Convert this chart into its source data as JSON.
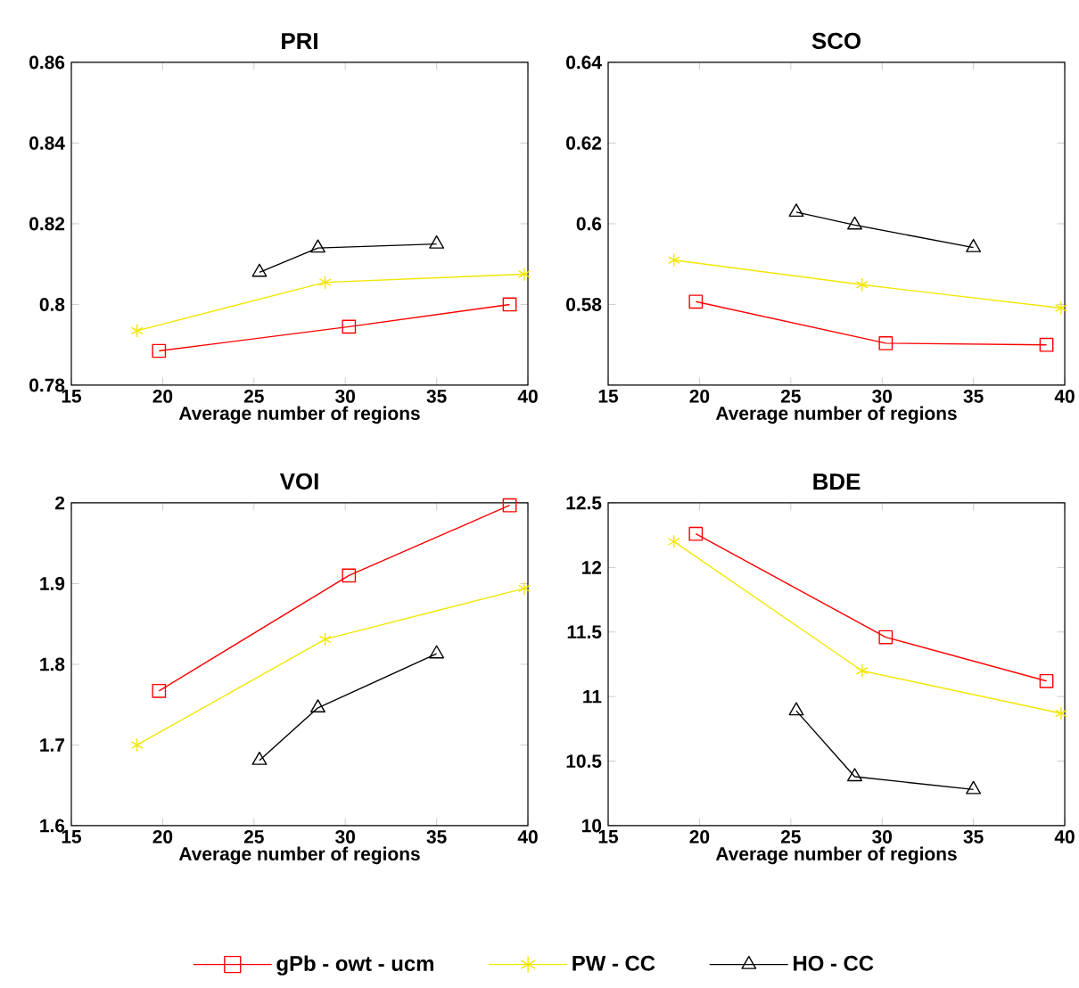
{
  "chart_data": [
    {
      "type": "line",
      "title": "PRI",
      "xlabel": "Average number of regions",
      "xlim": [
        15,
        40
      ],
      "xticks": [
        15,
        20,
        25,
        30,
        35,
        40
      ],
      "ylim": [
        0.78,
        0.86
      ],
      "yticks": [
        0.78,
        0.8,
        0.82,
        0.84,
        0.86
      ],
      "series": [
        {
          "color": "#ff0000",
          "marker": "square",
          "x": [
            19.8,
            30.2,
            39.0
          ],
          "values": [
            0.7885,
            0.7945,
            0.8
          ]
        },
        {
          "color": "#f2e600",
          "marker": "cross",
          "x": [
            18.6,
            28.9,
            39.8
          ],
          "values": [
            0.7935,
            0.8055,
            0.8075
          ]
        },
        {
          "color": "#000000",
          "marker": "triangle",
          "x": [
            25.3,
            28.5,
            35.0
          ],
          "values": [
            0.808,
            0.814,
            0.815
          ]
        }
      ]
    },
    {
      "type": "line",
      "title": "SCO",
      "xlabel": "Average number of regions",
      "xlim": [
        15,
        40
      ],
      "xticks": [
        15,
        20,
        25,
        30,
        35,
        40
      ],
      "ylim": [
        0.56,
        0.64
      ],
      "yticks": [
        {
          "value": 0.56,
          "label": null
        },
        0.58,
        0.6,
        0.62,
        0.64
      ],
      "series": [
        {
          "color": "#ff0000",
          "marker": "square",
          "x": [
            19.8,
            30.2,
            39.0
          ],
          "values": [
            0.5807,
            0.5704,
            0.57
          ]
        },
        {
          "color": "#f2e600",
          "marker": "cross",
          "x": [
            18.6,
            28.9,
            39.8
          ],
          "values": [
            0.591,
            0.5849,
            0.5791
          ]
        },
        {
          "color": "#000000",
          "marker": "triangle",
          "x": [
            25.3,
            28.5,
            35.0
          ],
          "values": [
            0.6029,
            0.5997,
            0.5941
          ]
        }
      ]
    },
    {
      "type": "line",
      "title": "VOI",
      "xlabel": "Average number of regions",
      "xlim": [
        15,
        40
      ],
      "xticks": [
        15,
        20,
        25,
        30,
        35,
        40
      ],
      "ylim": [
        1.6,
        2
      ],
      "yticks": [
        1.6,
        1.7,
        1.8,
        1.9,
        2
      ],
      "series": [
        {
          "color": "#ff0000",
          "marker": "square",
          "x": [
            19.8,
            30.2,
            39.0
          ],
          "values": [
            1.767,
            1.91,
            1.997
          ]
        },
        {
          "color": "#f2e600",
          "marker": "cross",
          "x": [
            18.6,
            28.9,
            39.8
          ],
          "values": [
            1.7,
            1.831,
            1.894
          ]
        },
        {
          "color": "#000000",
          "marker": "triangle",
          "x": [
            25.3,
            28.5,
            35.0
          ],
          "values": [
            1.681,
            1.746,
            1.813
          ]
        }
      ]
    },
    {
      "type": "line",
      "title": "BDE",
      "xlabel": "Average number of regions",
      "xlim": [
        15,
        40
      ],
      "xticks": [
        15,
        20,
        25,
        30,
        35,
        40
      ],
      "ylim": [
        10,
        12.5
      ],
      "yticks": [
        10,
        10.5,
        11,
        11.5,
        12,
        12.5
      ],
      "legend": "bottom",
      "series": [
        {
          "name": "gPb - owt  - ucm",
          "color": "#ff0000",
          "marker": "square",
          "x": [
            19.8,
            30.2,
            39.0
          ],
          "values": [
            12.26,
            11.46,
            11.12
          ]
        },
        {
          "name": "PW - CC",
          "color": "#f2e600",
          "marker": "cross",
          "x": [
            18.6,
            28.9,
            39.8
          ],
          "values": [
            12.2,
            11.2,
            10.87
          ]
        },
        {
          "name": "HO - CC",
          "color": "#000000",
          "marker": "triangle",
          "x": [
            25.3,
            28.5,
            35.0
          ],
          "values": [
            10.89,
            10.38,
            10.28
          ]
        }
      ]
    }
  ]
}
